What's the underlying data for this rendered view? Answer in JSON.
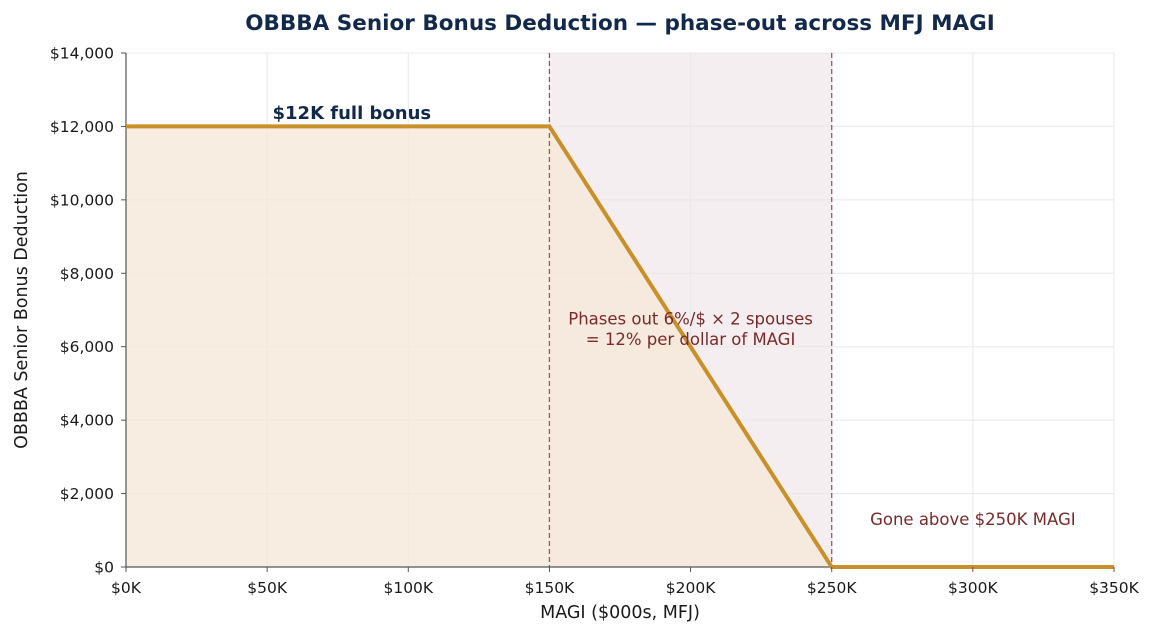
{
  "chart_data": {
    "type": "line",
    "title": "OBBBA Senior Bonus Deduction — phase-out across MFJ MAGI",
    "xlabel": "MAGI ($000s, MFJ)",
    "ylabel": "OBBBA Senior Bonus Deduction",
    "xlim": [
      0,
      350
    ],
    "ylim": [
      0,
      14000
    ],
    "x_ticks": [
      0,
      50,
      100,
      150,
      200,
      250,
      300,
      350
    ],
    "x_tick_labels": [
      "$0K",
      "$50K",
      "$100K",
      "$150K",
      "$200K",
      "$250K",
      "$300K",
      "$350K"
    ],
    "y_ticks": [
      0,
      2000,
      4000,
      6000,
      8000,
      10000,
      12000,
      14000
    ],
    "y_tick_labels": [
      "$0",
      "$2,000",
      "$4,000",
      "$6,000",
      "$8,000",
      "$10,000",
      "$12,000",
      "$14,000"
    ],
    "grid": true,
    "series": [
      {
        "x": [
          0,
          150,
          250,
          350
        ],
        "y": [
          12000,
          12000,
          0,
          0
        ],
        "color": "#c9902a",
        "fill_color": "#f5e9d8"
      }
    ],
    "phaseout_region": {
      "x_start": 150,
      "x_end": 250,
      "color": "#f5eef0",
      "line_color": "#a0414a"
    },
    "annotations": {
      "full_bonus": {
        "text": "$12K full bonus",
        "x": 80,
        "y": 12200,
        "color": "#13294b"
      },
      "phaseout_line1": {
        "text": "Phases out 6%/$ × 2 spouses",
        "x": 200,
        "y": 6600,
        "color": "#7a2a2a"
      },
      "phaseout_line2": {
        "text": "= 12% per dollar of MAGI",
        "x": 200,
        "y": 6050,
        "color": "#7a2a2a"
      },
      "gone": {
        "text": "Gone above $250K MAGI",
        "x": 300,
        "y": 1150,
        "color": "#7a2a2a"
      }
    },
    "colors": {
      "grid": "#e8e8e8",
      "axis": "#555555",
      "title": "#13294b"
    }
  }
}
